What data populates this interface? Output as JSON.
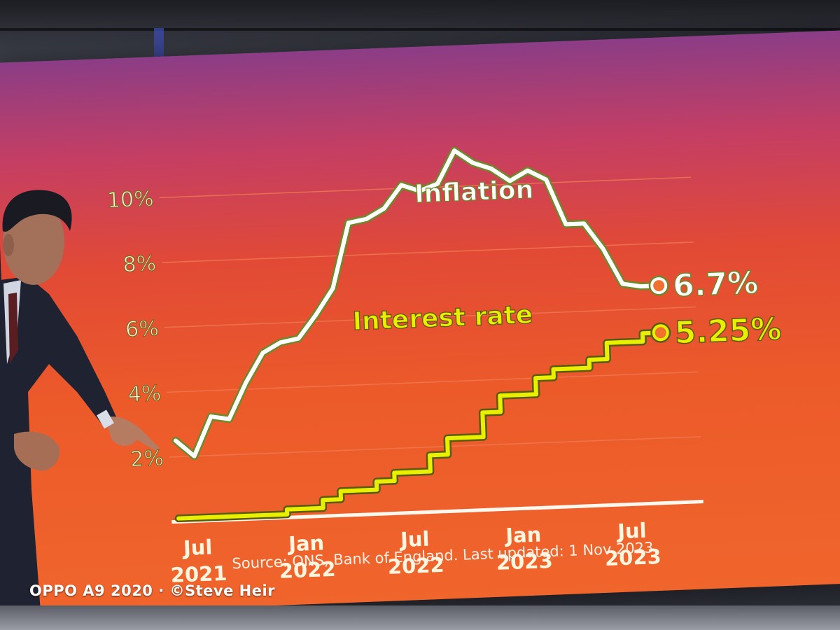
{
  "chart_data": {
    "type": "line",
    "title": "",
    "xlabel": "",
    "ylabel": "",
    "ylim": [
      0,
      11
    ],
    "y_ticks": [
      {
        "value": 2,
        "label": "2%"
      },
      {
        "value": 4,
        "label": "4%"
      },
      {
        "value": 6,
        "label": "6%"
      },
      {
        "value": 8,
        "label": "8%"
      },
      {
        "value": 10,
        "label": "10%"
      }
    ],
    "x_ticks": [
      {
        "date": "2021-07",
        "line1": "Jul",
        "line2": "2021"
      },
      {
        "date": "2022-01",
        "line1": "Jan",
        "line2": "2022"
      },
      {
        "date": "2022-07",
        "line1": "Jul",
        "line2": "2022"
      },
      {
        "date": "2023-01",
        "line1": "Jan",
        "line2": "2023"
      },
      {
        "date": "2023-07",
        "line1": "Jul",
        "line2": "2023"
      }
    ],
    "grid": true,
    "series": [
      {
        "name": "Inflation",
        "color": "#ffffff",
        "outline": "#6c8a2a",
        "end_label": "6.7%",
        "x": [
          "2021-06",
          "2021-07",
          "2021-08",
          "2021-09",
          "2021-10",
          "2021-11",
          "2021-12",
          "2022-01",
          "2022-02",
          "2022-03",
          "2022-04",
          "2022-05",
          "2022-06",
          "2022-07",
          "2022-08",
          "2022-09",
          "2022-10",
          "2022-11",
          "2022-12",
          "2023-01",
          "2023-02",
          "2023-03",
          "2023-04",
          "2023-05",
          "2023-06",
          "2023-07",
          "2023-08",
          "2023-09"
        ],
        "y": [
          2.5,
          2.0,
          3.2,
          3.1,
          4.2,
          5.1,
          5.4,
          5.5,
          6.2,
          7.0,
          9.0,
          9.1,
          9.4,
          10.1,
          9.9,
          10.1,
          11.1,
          10.7,
          10.5,
          10.1,
          10.4,
          10.1,
          8.7,
          8.7,
          7.9,
          6.8,
          6.7,
          6.7
        ]
      },
      {
        "name": "Interest rate",
        "color": "#e8f000",
        "outline": "#5a5a10",
        "end_label": "5.25%",
        "step": true,
        "x": [
          "2021-06",
          "2021-12",
          "2022-02",
          "2022-03",
          "2022-05",
          "2022-06",
          "2022-08",
          "2022-09",
          "2022-11",
          "2022-12",
          "2023-02",
          "2023-03",
          "2023-05",
          "2023-06",
          "2023-08",
          "2023-09"
        ],
        "y": [
          0.1,
          0.25,
          0.5,
          0.75,
          1.0,
          1.25,
          1.75,
          2.25,
          3.0,
          3.5,
          4.0,
          4.25,
          4.5,
          5.0,
          5.25,
          5.25
        ]
      }
    ],
    "source": "Source: ONS, Bank of England. Last updated: 1 Nov 2023"
  },
  "watermark": "OPPO A9 2020 · ©Steve Heir",
  "colors": {
    "gridline": "#f07a55",
    "axis_text": "#fff6e0",
    "axis_text_outline": "#7a6a1e",
    "baseline": "#fff8ee"
  }
}
